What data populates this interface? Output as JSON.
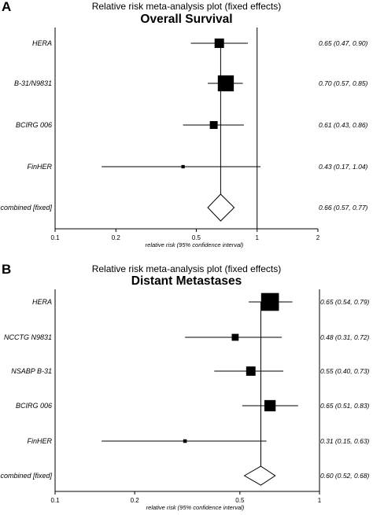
{
  "chart_data": [
    {
      "type": "forest",
      "panel_label": "A",
      "supertitle": "Relative risk meta-analysis plot (fixed effects)",
      "title": "Overall Survival",
      "xlabel": "relative risk (95% confidence interval)",
      "x_scale": "log",
      "xlim": [
        0.1,
        2
      ],
      "ticks": [
        {
          "value": 0.1,
          "label": "0.1"
        },
        {
          "value": 0.2,
          "label": "0.2"
        },
        {
          "value": 0.5,
          "label": "0.5"
        },
        {
          "value": 1,
          "label": "1"
        },
        {
          "value": 2,
          "label": "2"
        }
      ],
      "reference_line": 1,
      "studies": [
        {
          "label": "HERA",
          "estimate": 0.65,
          "lower": 0.47,
          "upper": 0.9,
          "ci_text": "0.65 (0.47, 0.90)",
          "weight": 0.8
        },
        {
          "label": "B-31/N9831",
          "estimate": 0.7,
          "lower": 0.57,
          "upper": 0.85,
          "ci_text": "0.70 (0.57, 0.85)",
          "weight": 2.3
        },
        {
          "label": "BCIRG 006",
          "estimate": 0.61,
          "lower": 0.43,
          "upper": 0.86,
          "ci_text": "0.61 (0.43, 0.86)",
          "weight": 0.55
        },
        {
          "label": "FinHER",
          "estimate": 0.43,
          "lower": 0.17,
          "upper": 1.04,
          "ci_text": "0.43 (0.17, 1.04)",
          "weight": 0.1
        }
      ],
      "combined": {
        "label": "combined [fixed]",
        "estimate": 0.66,
        "lower": 0.57,
        "upper": 0.77,
        "ci_text": "0.66 (0.57, 0.77)"
      }
    },
    {
      "type": "forest",
      "panel_label": "B",
      "supertitle": "Relative risk meta-analysis plot (fixed effects)",
      "title": "Distant Metastases",
      "xlabel": "relative risk (95% confidence interval)",
      "x_scale": "log",
      "xlim": [
        0.1,
        1
      ],
      "ticks": [
        {
          "value": 0.1,
          "label": "0.1"
        },
        {
          "value": 0.2,
          "label": "0.2"
        },
        {
          "value": 0.5,
          "label": "0.5"
        },
        {
          "value": 1,
          "label": "1"
        }
      ],
      "reference_line": 1,
      "studies": [
        {
          "label": "HERA",
          "estimate": 0.65,
          "lower": 0.54,
          "upper": 0.79,
          "ci_text": "0.65 (0.54, 0.79)",
          "weight": 2.0
        },
        {
          "label": "NCCTG N9831",
          "estimate": 0.48,
          "lower": 0.31,
          "upper": 0.72,
          "ci_text": "0.48 (0.31, 0.72)",
          "weight": 0.3
        },
        {
          "label": "NSABP B-31",
          "estimate": 0.55,
          "lower": 0.4,
          "upper": 0.73,
          "ci_text": "0.55 (0.40, 0.73)",
          "weight": 0.55
        },
        {
          "label": "BCIRG 006",
          "estimate": 0.65,
          "lower": 0.51,
          "upper": 0.83,
          "ci_text": "0.65 (0.51, 0.83)",
          "weight": 0.8
        },
        {
          "label": "FinHER",
          "estimate": 0.31,
          "lower": 0.15,
          "upper": 0.63,
          "ci_text": "0.31 (0.15, 0.63)",
          "weight": 0.08
        }
      ],
      "combined": {
        "label": "combined [fixed]",
        "estimate": 0.6,
        "lower": 0.52,
        "upper": 0.68,
        "ci_text": "0.60 (0.52, 0.68)"
      }
    }
  ]
}
